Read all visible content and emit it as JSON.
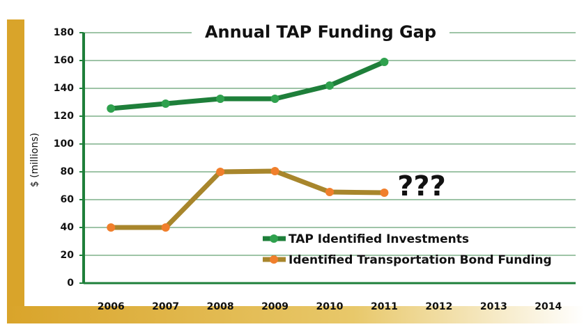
{
  "chart_data": {
    "type": "line",
    "title": "Annual TAP Funding Gap",
    "y_label": "$ (millions)",
    "annotation": "???",
    "categories": [
      "2006",
      "2007",
      "2008",
      "2009",
      "2010",
      "2011",
      "2012",
      "2013",
      "2014"
    ],
    "series": [
      {
        "name": "TAP Identified Investments",
        "color": "#1e7f3a",
        "marker_color": "#2fa14e",
        "values": [
          125.5,
          129,
          132.5,
          132.5,
          142,
          159,
          null,
          null,
          null
        ]
      },
      {
        "name": "Identified Transportation Bond Funding",
        "color": "#a8862c",
        "marker_color": "#f07f2c",
        "values": [
          40,
          40,
          80,
          80.5,
          65.5,
          65,
          null,
          null,
          null
        ]
      }
    ],
    "ylim": [
      0,
      180
    ],
    "yticks": [
      0,
      20,
      40,
      60,
      80,
      100,
      120,
      140,
      160,
      180
    ],
    "grid": true,
    "legend": "lower right"
  }
}
